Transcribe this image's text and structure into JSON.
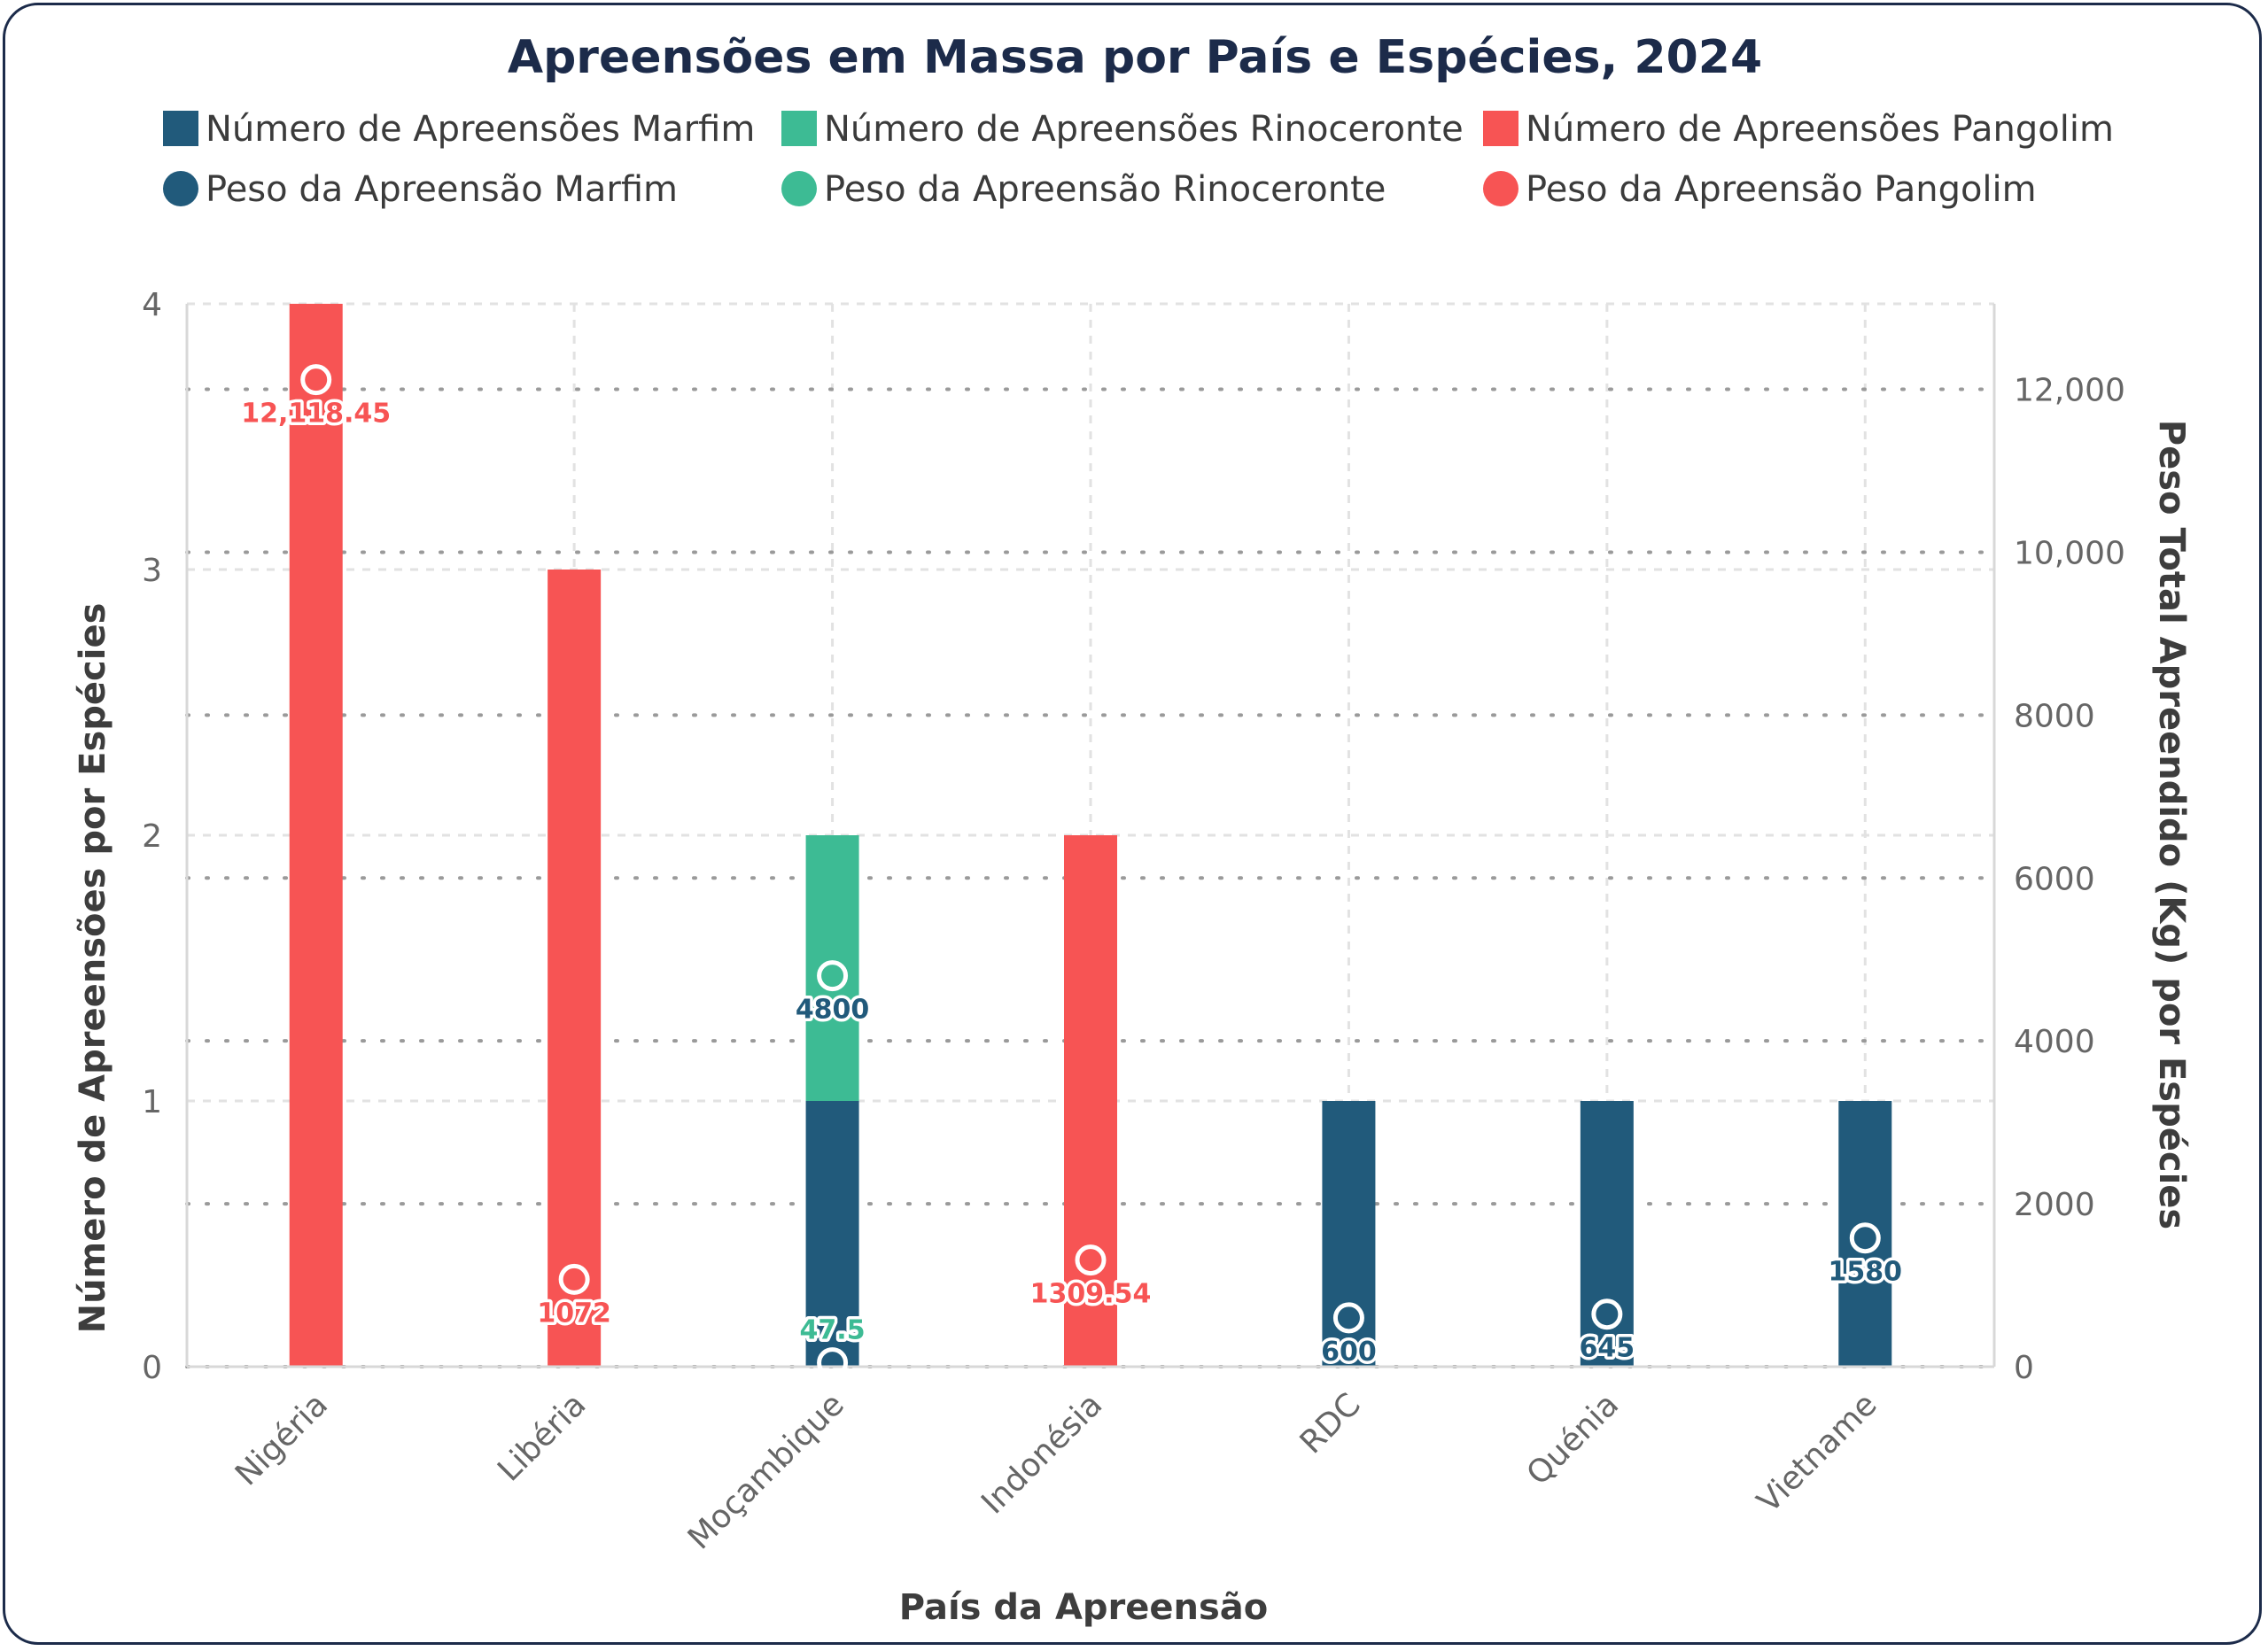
{
  "chart_data": {
    "type": "bar",
    "title": "Apreensões em Massa por País e Espécies, 2024",
    "xlabel": "País da Apreensão",
    "ylabel": "Número de Apreensões por Espécies",
    "y2label": "Peso Total Apreendido (Kg) por Espécies",
    "categories": [
      "Nigéria",
      "Libéria",
      "Moçambique",
      "Indonésia",
      "RDC",
      "Quénia",
      "Vietname"
    ],
    "ylim": [
      0,
      4
    ],
    "y_ticks": [
      "0",
      "1",
      "2",
      "3",
      "4"
    ],
    "y2lim": [
      0,
      13050
    ],
    "y2_ticks": [
      "0",
      "2000",
      "4000",
      "6000",
      "8000",
      "10,000",
      "12,000"
    ],
    "stacked": true,
    "grid": true,
    "legend_position": "top",
    "series": [
      {
        "name": "Número de Apreensões Marfim",
        "kind": "bar",
        "axis": "left",
        "color": "#215a7b",
        "values": [
          0,
          0,
          1,
          0,
          1,
          1,
          1
        ]
      },
      {
        "name": "Número de Apreensões Rinoceronte",
        "kind": "bar",
        "axis": "left",
        "color": "#3dbb94",
        "values": [
          0,
          0,
          1,
          0,
          0,
          0,
          0
        ]
      },
      {
        "name": "Número de Apreensões Pangolim",
        "kind": "bar",
        "axis": "left",
        "color": "#f75454",
        "values": [
          4,
          3,
          0,
          2,
          0,
          0,
          0
        ]
      }
    ],
    "points": [
      {
        "name": "Peso da Apreensão Marfim",
        "kind": "scatter",
        "axis": "right",
        "color": "#215a7b",
        "values": [
          null,
          null,
          4800,
          null,
          600,
          645,
          1580
        ],
        "labels": [
          null,
          null,
          "4800",
          null,
          "600",
          "645",
          "1580"
        ]
      },
      {
        "name": "Peso da Apreensão Rinoceronte",
        "kind": "scatter",
        "axis": "right",
        "color": "#3dbb94",
        "values": [
          null,
          null,
          47.5,
          null,
          null,
          null,
          null
        ],
        "labels": [
          null,
          null,
          "47.5",
          null,
          null,
          null,
          null
        ]
      },
      {
        "name": "Peso da Apreensão Pangolim",
        "kind": "scatter",
        "axis": "right",
        "color": "#f75454",
        "values": [
          12118.45,
          1072,
          null,
          1309.54,
          null,
          null,
          null
        ],
        "labels": [
          "12,118.45",
          "1072",
          null,
          "1309.54",
          null,
          null,
          null
        ]
      }
    ]
  }
}
